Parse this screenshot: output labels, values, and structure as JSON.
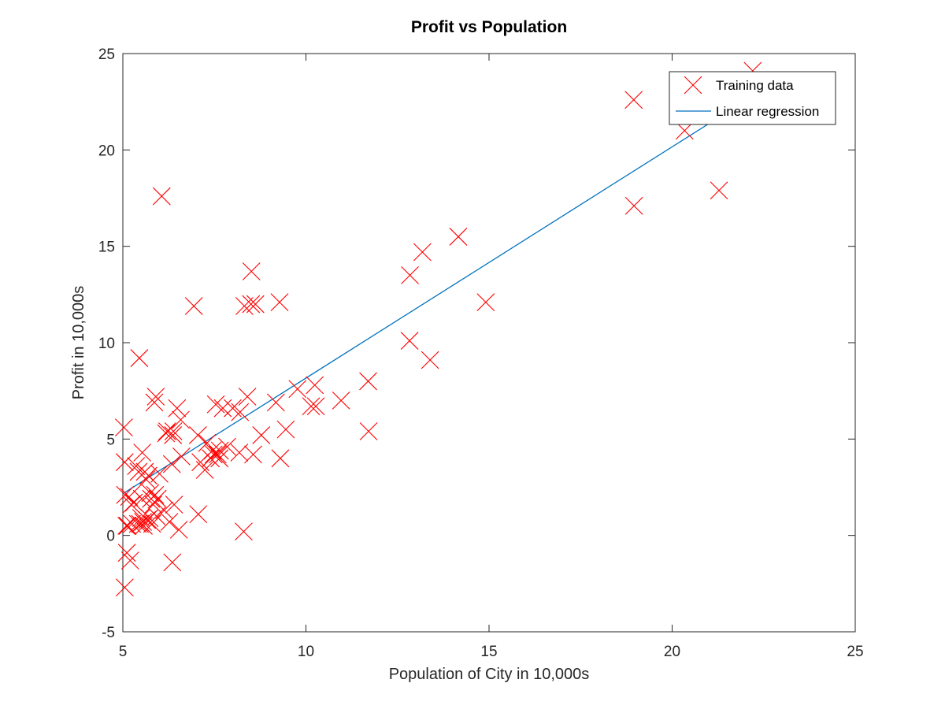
{
  "chart_data": {
    "type": "scatter",
    "title": "Profit vs Population",
    "xlabel": "Population of City in 10,000s",
    "ylabel": "Profit in 10,000s",
    "xlim": [
      5,
      25
    ],
    "ylim": [
      -5,
      25
    ],
    "xticks": [
      "5",
      "10",
      "15",
      "20",
      "25"
    ],
    "yticks": [
      "-5",
      "0",
      "5",
      "10",
      "15",
      "20",
      "25"
    ],
    "grid": false,
    "legend_position": "top-right",
    "colors": {
      "training": "#ff0000",
      "regression": "#0072bd",
      "axes": "#262626"
    },
    "series": [
      {
        "name": "Training data",
        "marker": "x",
        "x": [
          5.03,
          5.05,
          5.05,
          5.06,
          5.1,
          5.11,
          5.13,
          5.17,
          5.2,
          5.23,
          5.25,
          5.3,
          5.36,
          5.41,
          5.43,
          5.45,
          5.47,
          5.5,
          5.52,
          5.53,
          5.55,
          5.57,
          5.6,
          5.64,
          5.66,
          5.7,
          5.73,
          5.75,
          5.77,
          5.8,
          5.83,
          5.86,
          5.88,
          5.9,
          5.92,
          5.95,
          6.0,
          6.06,
          6.13,
          6.18,
          6.21,
          6.27,
          6.34,
          6.35,
          6.37,
          6.38,
          6.4,
          6.48,
          6.53,
          6.58,
          6.6,
          6.94,
          7.05,
          7.06,
          7.12,
          7.24,
          7.3,
          7.4,
          7.45,
          7.48,
          7.54,
          7.59,
          7.64,
          7.65,
          7.73,
          7.85,
          8.0,
          8.18,
          8.2,
          8.3,
          8.32,
          8.4,
          8.5,
          8.51,
          8.56,
          8.62,
          8.78,
          9.18,
          9.28,
          9.3,
          9.45,
          9.77,
          10.14,
          10.24,
          10.27,
          10.96,
          11.7,
          11.71,
          12.83,
          12.84,
          13.18,
          13.39,
          14.16,
          14.91,
          18.95,
          18.96,
          20.34,
          21.28,
          22.2
        ],
        "y": [
          5.6,
          -2.7,
          3.8,
          2.1,
          0.5,
          -0.9,
          0.5,
          2.0,
          -1.3,
          1.6,
          0.6,
          1.7,
          3.6,
          0.6,
          3.3,
          9.2,
          0.6,
          0.9,
          1.9,
          4.3,
          0.7,
          0.5,
          3.3,
          2.9,
          0.8,
          3.1,
          0.9,
          2.2,
          1.9,
          0.6,
          1.6,
          6.9,
          2.1,
          7.2,
          1.0,
          1.9,
          3.2,
          17.6,
          1.3,
          5.3,
          5.4,
          0.7,
          3.7,
          -1.4,
          5.2,
          5.4,
          1.6,
          6.6,
          0.3,
          6.0,
          4.1,
          11.9,
          5.2,
          1.1,
          3.8,
          3.4,
          4.8,
          4.0,
          4.4,
          4.2,
          6.8,
          4.2,
          4.0,
          4.4,
          6.6,
          4.6,
          6.6,
          4.3,
          6.4,
          0.2,
          11.9,
          7.2,
          12.0,
          13.7,
          4.2,
          12.0,
          5.2,
          6.9,
          12.1,
          4.0,
          5.5,
          7.6,
          6.7,
          7.8,
          6.7,
          7.0,
          8.0,
          5.4,
          10.1,
          13.5,
          14.7,
          9.1,
          15.5,
          12.1,
          22.6,
          17.1,
          21.0,
          17.9,
          24.1
        ]
      },
      {
        "name": "Linear regression",
        "type": "line",
        "x": [
          5.03,
          22.2
        ],
        "y": [
          2.2,
          22.8
        ]
      }
    ]
  }
}
